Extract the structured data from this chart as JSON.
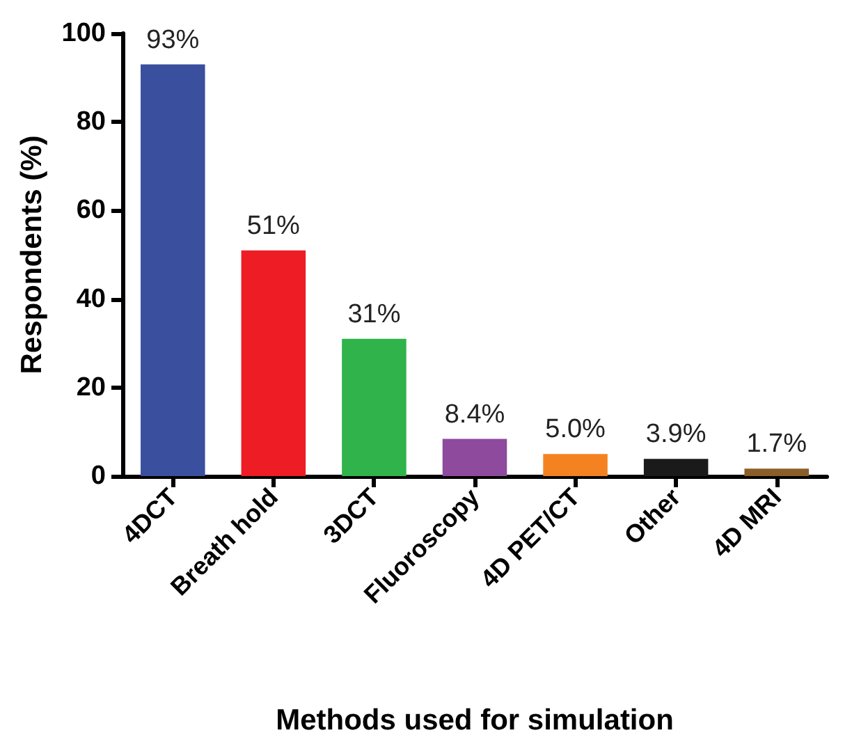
{
  "chart_data": {
    "type": "bar",
    "xlabel": "Methods used for simulation",
    "ylabel": "Respondents (%)",
    "categories": [
      "4DCT",
      "Breath hold",
      "3DCT",
      "Fluoroscopy",
      "4D PET/CT",
      "Other",
      "4D MRI"
    ],
    "values": [
      93,
      51,
      31,
      8.4,
      5.0,
      3.9,
      1.7
    ],
    "value_labels": [
      "93%",
      "51%",
      "31%",
      "8.4%",
      "5.0%",
      "3.9%",
      "1.7%"
    ],
    "colors": [
      "#3a4f9e",
      "#ee1c25",
      "#2fb34a",
      "#8e4b9e",
      "#f58220",
      "#1a1a1a",
      "#8b5e2a"
    ],
    "ylim": [
      0,
      100
    ],
    "yticks": [
      0,
      20,
      40,
      60,
      80,
      100
    ]
  }
}
